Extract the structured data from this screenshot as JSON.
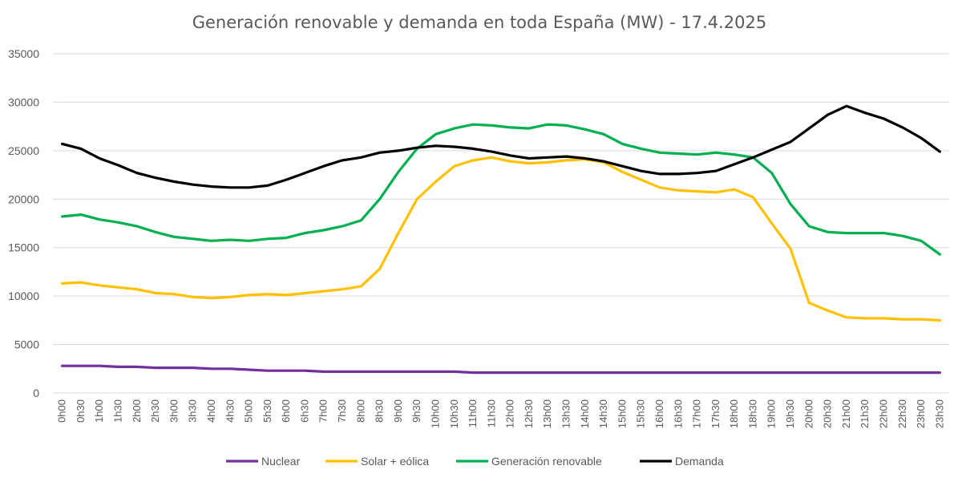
{
  "chart_data": {
    "type": "line",
    "title": "Generación renovable y demanda en toda España  (MW) - 17.4.2025",
    "xlabel": "",
    "ylabel": "",
    "ylim": [
      0,
      35000
    ],
    "yticks": [
      0,
      5000,
      10000,
      15000,
      20000,
      25000,
      30000,
      35000
    ],
    "grid": true,
    "legend": "bottom",
    "x": [
      "0h00",
      "0h30",
      "1h00",
      "1h30",
      "2h00",
      "2h30",
      "3h00",
      "3h30",
      "4h00",
      "4h30",
      "5h00",
      "5h30",
      "6h00",
      "6h30",
      "7h00",
      "7h30",
      "8h00",
      "8h30",
      "9h00",
      "9h30",
      "10h00",
      "10h30",
      "11h00",
      "11h30",
      "12h00",
      "12h30",
      "13h00",
      "13h30",
      "14h00",
      "14h30",
      "15h00",
      "15h30",
      "16h00",
      "16h30",
      "17h00",
      "17h30",
      "18h00",
      "18h30",
      "19h00",
      "19h30",
      "20h00",
      "20h30",
      "21h00",
      "21h30",
      "22h00",
      "22h30",
      "23h00",
      "23h30"
    ],
    "series": [
      {
        "name": "Nuclear",
        "color": "#7030a0",
        "values": [
          2800,
          2800,
          2800,
          2700,
          2700,
          2600,
          2600,
          2600,
          2500,
          2500,
          2400,
          2300,
          2300,
          2300,
          2200,
          2200,
          2200,
          2200,
          2200,
          2200,
          2200,
          2200,
          2100,
          2100,
          2100,
          2100,
          2100,
          2100,
          2100,
          2100,
          2100,
          2100,
          2100,
          2100,
          2100,
          2100,
          2100,
          2100,
          2100,
          2100,
          2100,
          2100,
          2100,
          2100,
          2100,
          2100,
          2100,
          2100
        ]
      },
      {
        "name": "Solar + eólica",
        "color": "#ffc000",
        "values": [
          11300,
          11400,
          11100,
          10900,
          10700,
          10300,
          10200,
          9900,
          9800,
          9900,
          10100,
          10200,
          10100,
          10300,
          10500,
          10700,
          11000,
          12800,
          16500,
          20000,
          21800,
          23400,
          24000,
          24300,
          23900,
          23700,
          23800,
          24000,
          24100,
          23800,
          22800,
          22000,
          21200,
          20900,
          20800,
          20700,
          21000,
          20200,
          17500,
          14900,
          9300,
          8500,
          7800,
          7700,
          7700,
          7600,
          7600,
          7500
        ]
      },
      {
        "name": "Generación renovable",
        "color": "#00b050",
        "values": [
          18200,
          18400,
          17900,
          17600,
          17200,
          16600,
          16100,
          15900,
          15700,
          15800,
          15700,
          15900,
          16000,
          16500,
          16800,
          17200,
          17800,
          20000,
          22800,
          25200,
          26700,
          27300,
          27700,
          27600,
          27400,
          27300,
          27700,
          27600,
          27200,
          26700,
          25700,
          25200,
          24800,
          24700,
          24600,
          24800,
          24600,
          24300,
          22700,
          19500,
          17200,
          16600,
          16500,
          16500,
          16500,
          16200,
          15700,
          14300
        ]
      },
      {
        "name": "Demanda",
        "color": "#000000",
        "values": [
          25700,
          25200,
          24200,
          23500,
          22700,
          22200,
          21800,
          21500,
          21300,
          21200,
          21200,
          21400,
          22000,
          22700,
          23400,
          24000,
          24300,
          24800,
          25000,
          25300,
          25500,
          25400,
          25200,
          24900,
          24500,
          24200,
          24300,
          24400,
          24200,
          23900,
          23400,
          22900,
          22600,
          22600,
          22700,
          22900,
          23600,
          24300,
          25100,
          25900,
          27300,
          28700,
          29600,
          28900,
          28300,
          27400,
          26300,
          24900
        ]
      }
    ]
  }
}
